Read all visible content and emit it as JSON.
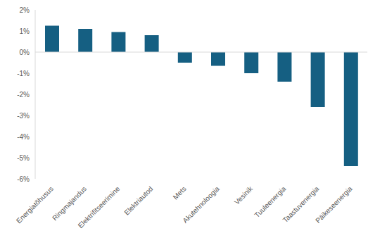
{
  "chart_data": {
    "type": "bar",
    "categories": [
      "Energiatõhusus",
      "Ringmajandus",
      "Elektrifitseerimine",
      "Elektriautod",
      "Mets",
      "Akutehnoloogia",
      "Vesinik",
      "Tuuleenergia",
      "Taastuvenergia",
      "Päikeseenergia"
    ],
    "values": [
      1.25,
      1.1,
      0.95,
      0.8,
      -0.5,
      -0.65,
      -1.0,
      -1.4,
      -2.6,
      -5.4
    ],
    "color": "#155f82",
    "ylim": [
      -6,
      2
    ],
    "yticks": [
      {
        "value": -6,
        "label": "-6%"
      },
      {
        "value": -5,
        "label": "-5%"
      },
      {
        "value": -4,
        "label": "-4%"
      },
      {
        "value": -3,
        "label": "-3%"
      },
      {
        "value": -2,
        "label": "-2%"
      },
      {
        "value": -1,
        "label": "-1%"
      },
      {
        "value": 0,
        "label": "0%"
      },
      {
        "value": 1,
        "label": "1%"
      },
      {
        "value": 2,
        "label": "2%"
      }
    ],
    "grid": false
  }
}
